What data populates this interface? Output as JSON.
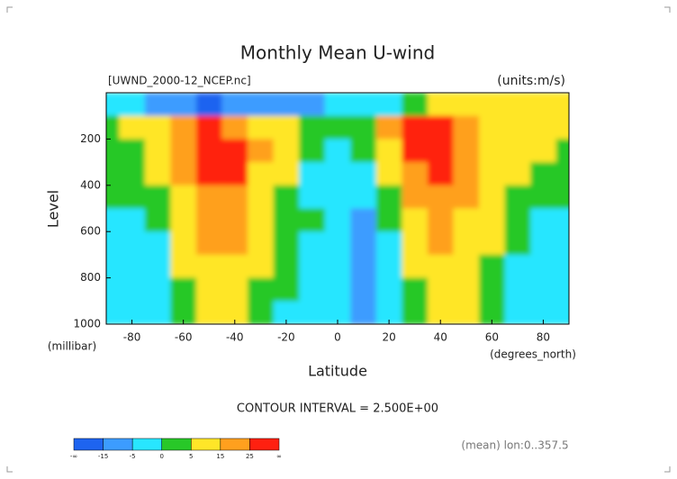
{
  "chart_data": {
    "type": "contour",
    "title": "Monthly Mean U-wind",
    "subtitle": "[UWND_2000-12_NCEP.nc]",
    "units": "(units:m/s)",
    "x_label": "Latitude",
    "x_unit": "(degrees_north)",
    "y_label": "Level",
    "y_unit": "(millibar)",
    "note": "CONTOUR INTERVAL = 2.500E+00",
    "footer": "(mean) lon:0..357.5",
    "x": [
      -90,
      -80,
      -70,
      -60,
      -50,
      -40,
      -30,
      -20,
      -10,
      0,
      10,
      20,
      30,
      40,
      50,
      60,
      70,
      80,
      90
    ],
    "y": [
      50,
      150,
      250,
      350,
      450,
      550,
      650,
      750,
      850,
      950
    ],
    "z": [
      [
        -3,
        -5,
        -8,
        -12,
        -18,
        -15,
        -10,
        -8,
        -6,
        -5,
        -5,
        -3,
        0,
        5,
        10,
        12,
        10,
        8,
        6
      ],
      [
        3,
        5,
        8,
        15,
        25,
        22,
        12,
        5,
        2,
        0,
        3,
        15,
        30,
        28,
        18,
        12,
        8,
        6,
        5
      ],
      [
        2,
        4,
        8,
        18,
        30,
        28,
        16,
        6,
        0,
        -2,
        0,
        8,
        25,
        32,
        22,
        12,
        8,
        5,
        4
      ],
      [
        1,
        3,
        6,
        15,
        28,
        26,
        14,
        5,
        -1,
        -3,
        -3,
        5,
        20,
        28,
        20,
        12,
        6,
        3,
        2
      ],
      [
        0,
        1,
        3,
        12,
        22,
        22,
        12,
        4,
        -1,
        -3,
        -5,
        2,
        15,
        22,
        16,
        10,
        4,
        1,
        0
      ],
      [
        -1,
        -1,
        1,
        9,
        18,
        18,
        9,
        3,
        0,
        -3,
        -6,
        0,
        10,
        18,
        14,
        7,
        2,
        -1,
        -2
      ],
      [
        -2,
        -2,
        -1,
        7,
        15,
        15,
        7,
        2,
        -1,
        -3,
        -7,
        -2,
        7,
        15,
        12,
        5,
        0,
        -2,
        -3
      ],
      [
        -2,
        -3,
        -2,
        5,
        13,
        13,
        5,
        1,
        -2,
        -3,
        -7,
        -3,
        5,
        13,
        10,
        3,
        -1,
        -3,
        -3
      ],
      [
        -2,
        -3,
        -3,
        3,
        12,
        12,
        3,
        0,
        -2,
        -4,
        -8,
        -4,
        3,
        11,
        9,
        2,
        -2,
        -4,
        -3
      ],
      [
        -1,
        -2,
        -3,
        1,
        8,
        8,
        2,
        -2,
        -3,
        -4,
        -7,
        -3,
        1,
        8,
        6,
        1,
        -2,
        -3,
        -2
      ]
    ],
    "levels": [
      -15,
      -5,
      0,
      5,
      15,
      25
    ],
    "level_colors": [
      "#1e64f0",
      "#3c9cff",
      "#28e6ff",
      "#28c828",
      "#ffe628",
      "#ffa01e",
      "#ff2010"
    ],
    "colorbar_ends": [
      "-∞",
      "∞"
    ],
    "xlim": [
      -90,
      90
    ],
    "ylim": [
      1000,
      0
    ],
    "xticks": [
      -80,
      -60,
      -40,
      -20,
      0,
      20,
      40,
      60,
      80
    ],
    "yticks": [
      200,
      400,
      600,
      800,
      1000
    ]
  }
}
